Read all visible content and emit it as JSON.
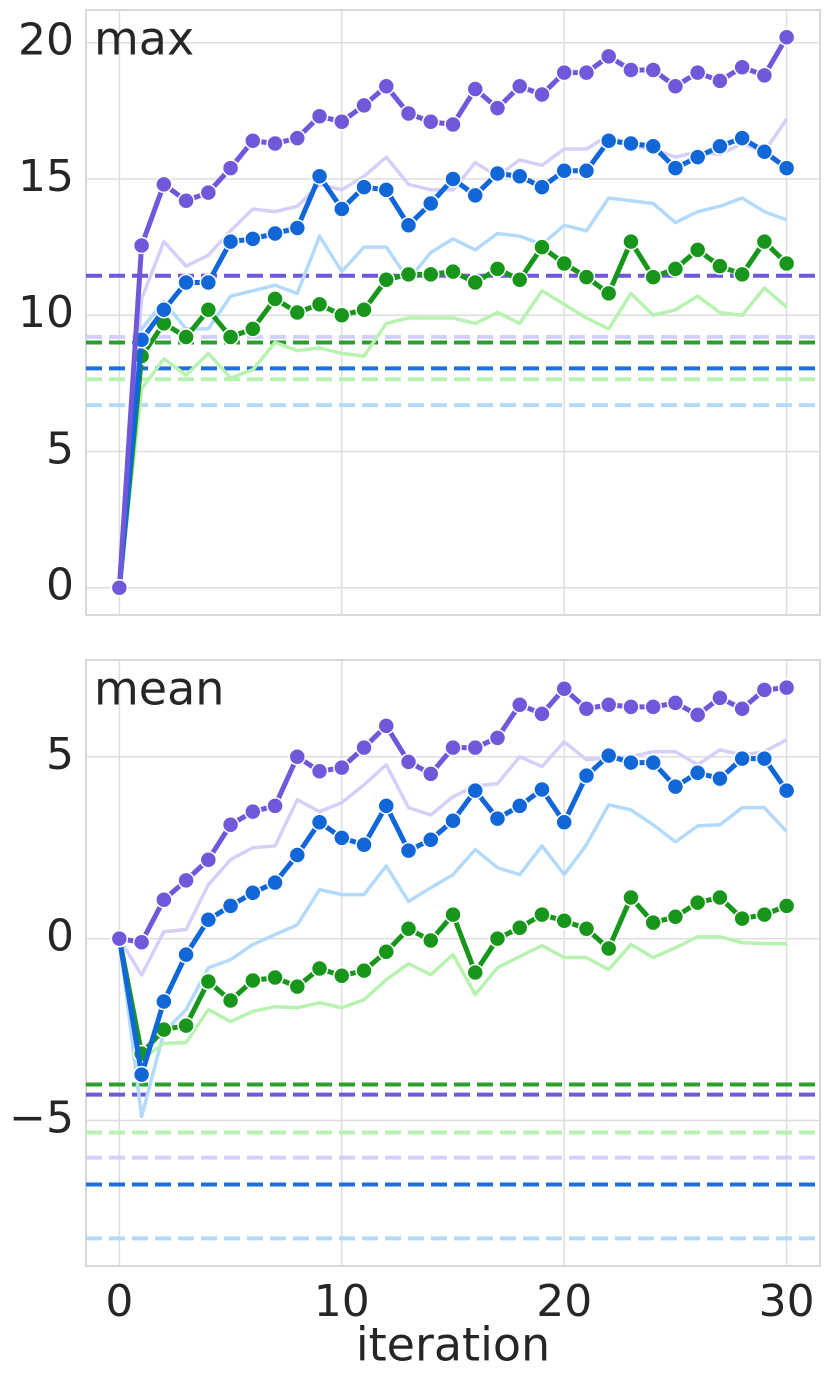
{
  "chart_data": [
    {
      "type": "line",
      "title": "max",
      "x": [
        0,
        1,
        2,
        3,
        4,
        5,
        6,
        7,
        8,
        9,
        10,
        11,
        12,
        13,
        14,
        15,
        16,
        17,
        18,
        19,
        20,
        21,
        22,
        23,
        24,
        25,
        26,
        27,
        28,
        29,
        30
      ],
      "xlim": [
        -1.5,
        31.5
      ],
      "xticks": [
        0,
        10,
        20,
        30
      ],
      "xtick_labels": false,
      "ylim": [
        -1,
        21.2
      ],
      "yticks": [
        0,
        5,
        10,
        15,
        20
      ],
      "grid": true,
      "hlines": [
        {
          "color": "#b4dafb",
          "value": 6.7
        },
        {
          "color": "#b8f2b0",
          "value": 7.65
        },
        {
          "color": "#1f6fd8",
          "value": 8.05
        },
        {
          "color": "#2ca02c",
          "value": 9.0
        },
        {
          "color": "#d4d0fa",
          "value": 9.2
        },
        {
          "color": "#7157d9",
          "value": 11.45
        }
      ],
      "series": [
        {
          "color": "#d4d0fa",
          "marker": false,
          "values": [
            0,
            10.6,
            12.7,
            11.8,
            12.2,
            13.1,
            13.9,
            13.8,
            14.0,
            14.8,
            14.6,
            15.1,
            15.8,
            14.8,
            14.6,
            14.6,
            15.6,
            15.1,
            15.7,
            15.5,
            16.1,
            16.1,
            16.6,
            16.2,
            16.1,
            15.8,
            16.0,
            15.9,
            16.3,
            16.0,
            17.2
          ]
        },
        {
          "color": "#b4dafb",
          "marker": false,
          "values": [
            0,
            9.5,
            10.5,
            9.5,
            9.5,
            10.7,
            10.9,
            11.1,
            10.8,
            12.9,
            11.6,
            12.5,
            12.5,
            11.3,
            12.3,
            12.8,
            12.4,
            13.0,
            12.9,
            12.6,
            13.3,
            13.1,
            14.3,
            14.2,
            14.1,
            13.4,
            13.8,
            14.0,
            14.3,
            13.8,
            13.5
          ]
        },
        {
          "color": "#b8f2b0",
          "marker": false,
          "values": [
            0,
            7.3,
            8.4,
            7.8,
            8.6,
            7.7,
            8.0,
            9.0,
            8.7,
            8.8,
            8.6,
            8.5,
            9.7,
            9.9,
            9.9,
            9.9,
            9.7,
            10.1,
            9.7,
            10.9,
            10.4,
            9.9,
            9.5,
            10.8,
            10.0,
            10.2,
            10.7,
            10.1,
            10.0,
            11.0,
            10.3
          ]
        },
        {
          "color": "#18961c",
          "marker": true,
          "values": [
            0,
            8.5,
            9.7,
            9.2,
            10.2,
            9.2,
            9.5,
            10.6,
            10.1,
            10.4,
            10.0,
            10.2,
            11.3,
            11.5,
            11.5,
            11.6,
            11.2,
            11.7,
            11.3,
            12.5,
            11.9,
            11.4,
            10.8,
            12.7,
            11.4,
            11.7,
            12.4,
            11.8,
            11.5,
            12.7,
            11.9
          ]
        },
        {
          "color": "#1167d8",
          "marker": true,
          "values": [
            0,
            9.1,
            10.2,
            11.2,
            11.2,
            12.7,
            12.8,
            13.0,
            13.2,
            15.1,
            13.9,
            14.7,
            14.6,
            13.3,
            14.1,
            15.0,
            14.4,
            15.2,
            15.1,
            14.7,
            15.3,
            15.3,
            16.4,
            16.3,
            16.2,
            15.4,
            15.8,
            16.2,
            16.5,
            16.0,
            15.4
          ]
        },
        {
          "color": "#7157d9",
          "marker": true,
          "values": [
            0,
            12.56,
            14.8,
            14.2,
            14.5,
            15.4,
            16.4,
            16.3,
            16.5,
            17.3,
            17.1,
            17.7,
            18.4,
            17.4,
            17.1,
            17.0,
            18.3,
            17.6,
            18.4,
            18.1,
            18.9,
            18.9,
            19.5,
            19.0,
            19.0,
            18.4,
            18.9,
            18.6,
            19.1,
            18.8,
            20.2
          ]
        }
      ]
    },
    {
      "type": "line",
      "title": "mean",
      "xlabel": "iteration",
      "x": [
        0,
        1,
        2,
        3,
        4,
        5,
        6,
        7,
        8,
        9,
        10,
        11,
        12,
        13,
        14,
        15,
        16,
        17,
        18,
        19,
        20,
        21,
        22,
        23,
        24,
        25,
        26,
        27,
        28,
        29,
        30
      ],
      "xlim": [
        -1.5,
        31.5
      ],
      "xticks": [
        0,
        10,
        20,
        30
      ],
      "xtick_labels": true,
      "ylim": [
        -9,
        7.66
      ],
      "yticks": [
        {
          "value": -5,
          "label": "−5"
        },
        0,
        5
      ],
      "grid": true,
      "hlines": [
        {
          "color": "#b4dafb",
          "value": -8.24
        },
        {
          "color": "#1f6fd8",
          "value": -6.76
        },
        {
          "color": "#d4d0fa",
          "value": -6.02
        },
        {
          "color": "#b8f2b0",
          "value": -5.33
        },
        {
          "color": "#7157d9",
          "value": -4.29
        },
        {
          "color": "#2ca02c",
          "value": -4.01
        }
      ],
      "series": [
        {
          "color": "#d4d0fa",
          "marker": false,
          "values": [
            0,
            -1.0,
            0.19,
            0.25,
            1.48,
            2.17,
            2.5,
            2.55,
            3.82,
            3.49,
            3.74,
            4.23,
            4.78,
            3.6,
            3.4,
            3.9,
            4.2,
            4.26,
            5.0,
            4.73,
            5.41,
            4.92,
            4.97,
            5.0,
            5.14,
            5.14,
            4.78,
            5.19,
            5.05,
            5.14,
            5.47
          ]
        },
        {
          "color": "#b4dafb",
          "marker": false,
          "values": [
            0,
            -4.89,
            -2.58,
            -1.95,
            -0.8,
            -0.58,
            -0.16,
            0.11,
            0.38,
            1.35,
            1.21,
            1.21,
            2.0,
            1.02,
            1.4,
            1.76,
            2.45,
            1.95,
            1.76,
            2.55,
            1.76,
            2.58,
            3.68,
            3.54,
            3.13,
            2.66,
            3.1,
            3.13,
            3.6,
            3.6,
            2.94
          ]
        },
        {
          "color": "#b8f2b0",
          "marker": false,
          "values": [
            0,
            -3.32,
            -2.88,
            -2.86,
            -1.95,
            -2.28,
            -2.0,
            -1.87,
            -1.9,
            -1.76,
            -1.9,
            -1.68,
            -1.13,
            -0.69,
            -0.99,
            -0.44,
            -1.54,
            -0.8,
            -0.49,
            -0.19,
            -0.52,
            -0.52,
            -0.85,
            -0.16,
            -0.52,
            -0.25,
            0.05,
            0.05,
            -0.11,
            -0.14,
            -0.14
          ]
        },
        {
          "color": "#18961c",
          "marker": true,
          "values": [
            0,
            -3.16,
            -2.5,
            -2.39,
            -1.18,
            -1.7,
            -1.15,
            -1.07,
            -1.32,
            -0.82,
            -1.02,
            -0.88,
            -0.36,
            0.27,
            -0.05,
            0.66,
            -0.93,
            0,
            0.3,
            0.66,
            0.49,
            0.27,
            -0.27,
            1.13,
            0.44,
            0.6,
            0.99,
            1.13,
            0.55,
            0.66,
            0.9
          ]
        },
        {
          "color": "#1167d8",
          "marker": true,
          "values": [
            0,
            -3.74,
            -1.73,
            -0.44,
            0.52,
            0.9,
            1.26,
            1.54,
            2.3,
            3.2,
            2.77,
            2.58,
            3.65,
            2.42,
            2.72,
            3.24,
            4.07,
            3.3,
            3.65,
            4.1,
            3.2,
            4.48,
            5.03,
            4.84,
            4.84,
            4.18,
            4.56,
            4.4,
            4.95,
            4.95,
            4.07
          ]
        },
        {
          "color": "#7157d9",
          "marker": true,
          "values": [
            0,
            -0.1,
            1.07,
            1.6,
            2.17,
            3.13,
            3.49,
            3.65,
            5.0,
            4.6,
            4.7,
            5.25,
            5.85,
            4.86,
            4.53,
            5.25,
            5.25,
            5.52,
            6.43,
            6.18,
            6.87,
            6.32,
            6.43,
            6.37,
            6.37,
            6.48,
            6.15,
            6.62,
            6.32,
            6.84,
            6.9
          ]
        }
      ]
    }
  ]
}
